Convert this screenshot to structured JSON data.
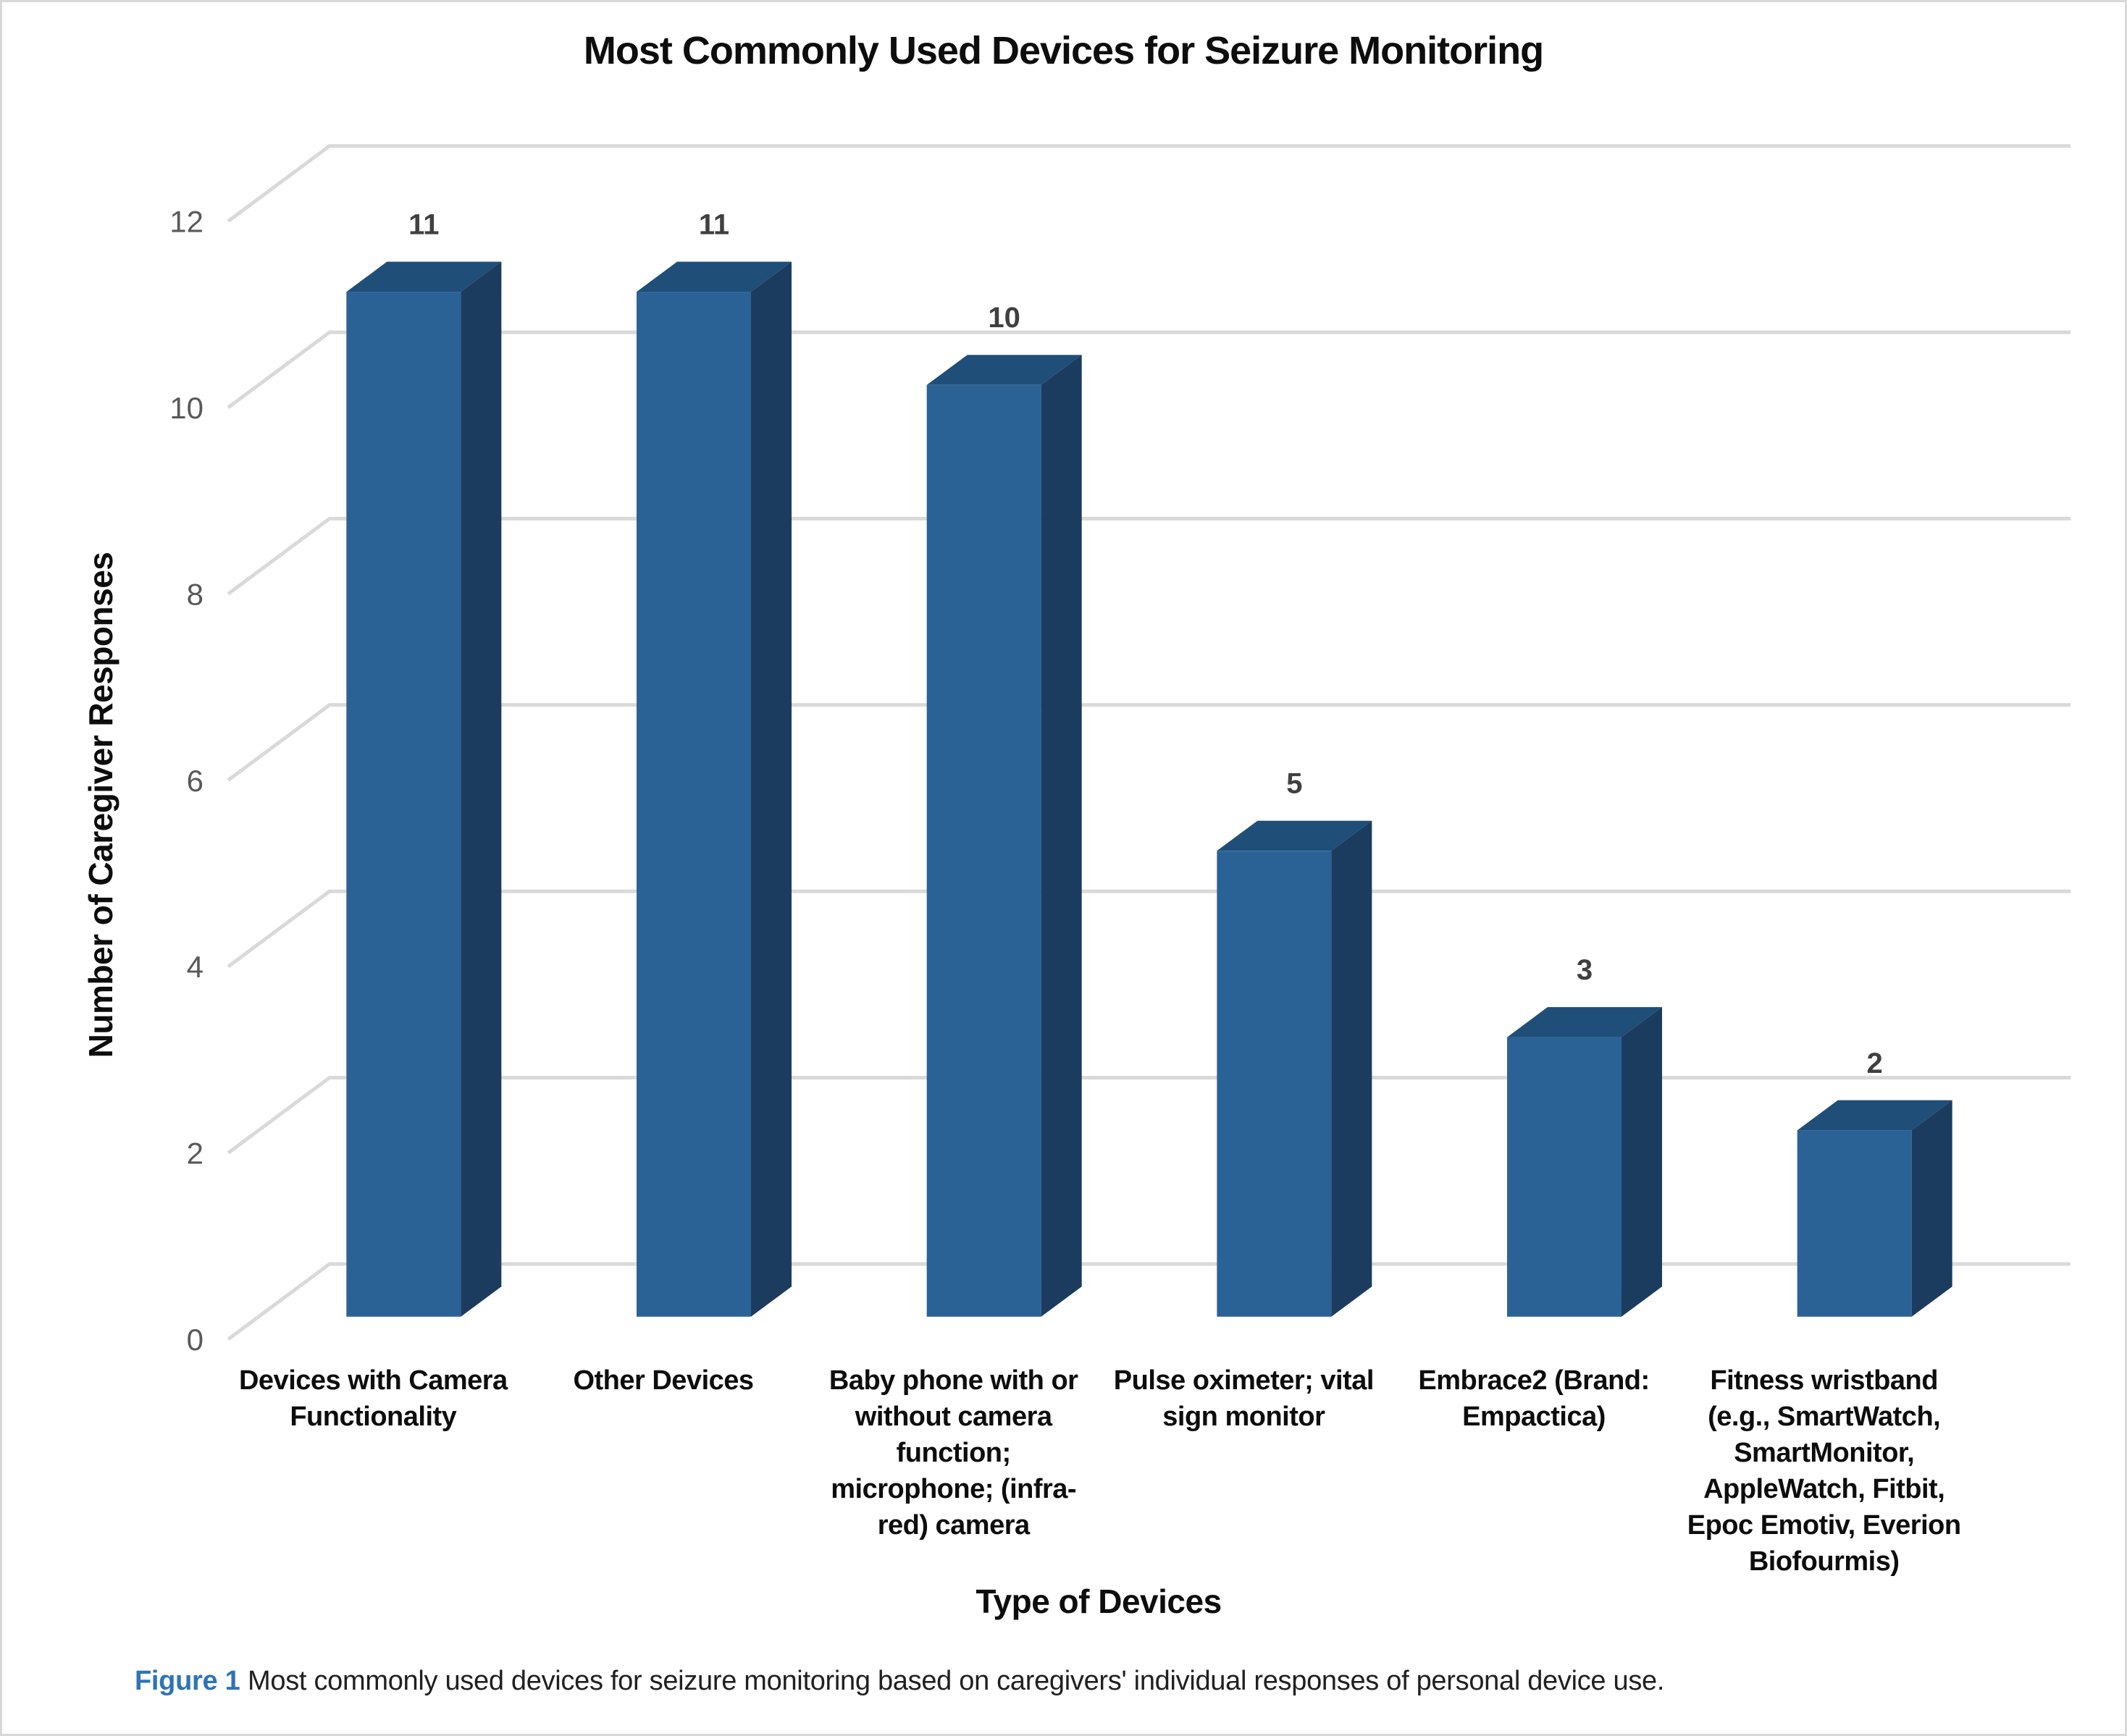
{
  "page": {
    "border_color": "#D8D8D8",
    "caption": {
      "prefix": "Figure 1",
      "body": "Most commonly used devices for seizure monitoring based on caregivers' individual responses of personal device use.",
      "prefix_color": "#2E74B5"
    }
  },
  "chart_data": {
    "type": "bar",
    "style": "3d-column",
    "title": "Most Commonly Used Devices for Seizure Monitoring",
    "xlabel": "Type of Devices",
    "ylabel": "Number of Caregiver Responses",
    "ylim": [
      0,
      12
    ],
    "ytick_step": 2,
    "yticks": [
      0,
      2,
      4,
      6,
      8,
      10,
      12
    ],
    "grid": true,
    "legend": false,
    "categories": [
      "Devices with Camera Functionality",
      "Other Devices",
      "Baby phone with or without camera function; microphone; (infra-red) camera",
      "Pulse oximeter; vital sign monitor",
      "Embrace2 (Brand: Empactica)",
      "Fitness wristband (e.g., SmartWatch, SmartMonitor, AppleWatch, Fitbit, Epoc Emotiv, Everion Biofourmis)"
    ],
    "categories_lines": [
      [
        "Devices with Camera",
        "Functionality"
      ],
      [
        "Other Devices"
      ],
      [
        "Baby phone with or",
        "without camera",
        "function;",
        "microphone; (infra-",
        "red) camera"
      ],
      [
        "Pulse oximeter; vital",
        "sign monitor"
      ],
      [
        "Embrace2 (Brand:",
        "Empactica)"
      ],
      [
        "Fitness wristband",
        "(e.g., SmartWatch,",
        "SmartMonitor,",
        "AppleWatch, Fitbit,",
        "Epoc Emotiv, Everion",
        "Biofourmis)"
      ]
    ],
    "values": [
      11,
      11,
      10,
      5,
      3,
      2
    ],
    "data_labels": [
      "11",
      "11",
      "10",
      "5",
      "3",
      "2"
    ],
    "colors": {
      "bar_front": "#2B6296",
      "bar_top": "#1F4E79",
      "bar_side": "#1B3C5E",
      "gridline": "#D9D9D9",
      "tick_label": "#595959",
      "data_label": "#404040",
      "category_label": "#0D0D0D"
    }
  }
}
